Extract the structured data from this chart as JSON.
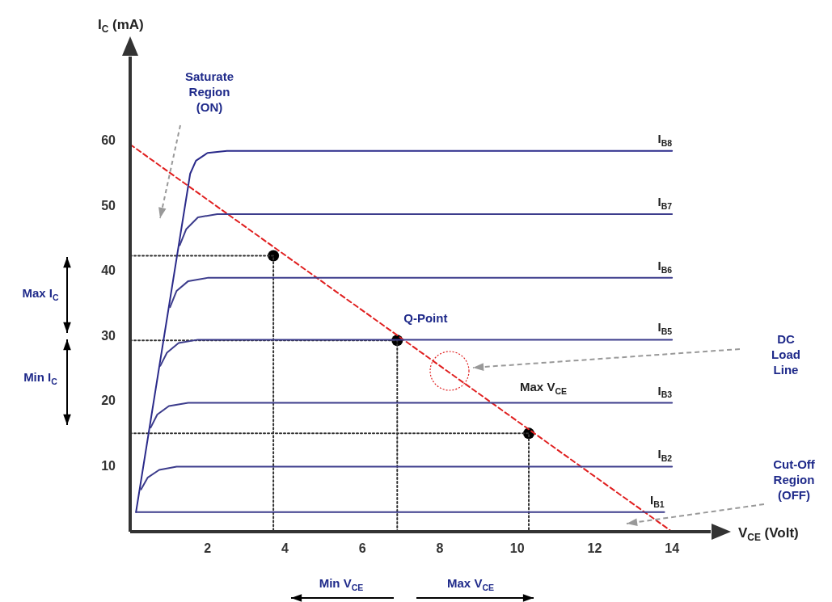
{
  "chart_data": {
    "type": "line",
    "xlabel": "V$_{CE}$ (Volt)",
    "ylabel": "I$_{C}$ (mA)",
    "xlim": [
      0,
      15
    ],
    "ylim": [
      0,
      73
    ],
    "xticks": [
      2,
      4,
      6,
      8,
      10,
      12,
      14
    ],
    "yticks": [
      10,
      20,
      30,
      40,
      50,
      60
    ],
    "grid": false,
    "legend": false,
    "line_style": "solid",
    "series": [
      {
        "name": "I$_{B1}$",
        "color": "#3c3c8c",
        "x": [
          0.15,
          13.8
        ],
        "values": [
          3,
          3
        ]
      },
      {
        "name": "I$_{B2}$",
        "color": "#3c3c8c",
        "x": [
          0.28,
          0.45,
          0.75,
          1.2,
          14
        ],
        "values": [
          6.5,
          8.3,
          9.5,
          10,
          10
        ]
      },
      {
        "name": "I$_{B3}$",
        "color": "#3c3c8c",
        "x": [
          0.53,
          0.7,
          1.0,
          1.5,
          14
        ],
        "values": [
          16,
          18,
          19.3,
          19.8,
          19.8
        ]
      },
      {
        "name": "I$_{B5}$",
        "color": "#3c3c8c",
        "x": [
          0.78,
          0.95,
          1.25,
          1.75,
          14
        ],
        "values": [
          25.5,
          27.5,
          29,
          29.5,
          29.5
        ]
      },
      {
        "name": "I$_{B6}$",
        "color": "#3c3c8c",
        "x": [
          1.03,
          1.2,
          1.5,
          2.0,
          14
        ],
        "values": [
          34.5,
          37,
          38.5,
          39,
          39
        ]
      },
      {
        "name": "I$_{B7}$",
        "color": "#3c3c8c",
        "x": [
          1.28,
          1.45,
          1.75,
          2.25,
          14
        ],
        "values": [
          44,
          46.5,
          48.3,
          48.8,
          48.8
        ]
      },
      {
        "name": "I$_{B8}$",
        "color": "#2a2a8a",
        "x": [
          0.15,
          1.55,
          1.7,
          2.0,
          2.5,
          14
        ],
        "values": [
          3,
          55,
          57,
          58.2,
          58.5,
          58.5
        ]
      },
      {
        "type": "line",
        "color": "#333333",
        "line_style": "dotted",
        "x": [
          0,
          3.7,
          3.7
        ],
        "values": [
          42.4,
          42.4,
          0
        ]
      },
      {
        "type": "line",
        "color": "#333333",
        "line_style": "dotted",
        "x": [
          0,
          6.9,
          6.9
        ],
        "values": [
          29.4,
          29.4,
          0
        ]
      },
      {
        "type": "line",
        "color": "#333333",
        "line_style": "dotted",
        "x": [
          0,
          10.3,
          10.3
        ],
        "values": [
          15.1,
          15.1,
          0
        ]
      },
      {
        "type": "line",
        "color": "#e02020",
        "line_style": "dashed",
        "x": [
          0,
          14
        ],
        "values": [
          59.5,
          0
        ]
      },
      {
        "type": "scatter",
        "color": "#000000",
        "marker": "circle",
        "x": [
          3.7,
          6.9,
          10.3
        ],
        "values": [
          42.4,
          29.4,
          15.1
        ]
      }
    ],
    "annotations": [
      "Saturate Region (ON)",
      {
        "text": "Q-Point",
        "x": 6.9,
        "y": 29.4
      },
      "DC Load Line",
      "Max V$_{CE}$",
      "Cut-Off Region (OFF)",
      "Max I$_{C}$",
      "Min I$_{C}$",
      "Min V$_{CE}$",
      "Max V$_{CE}$"
    ]
  }
}
